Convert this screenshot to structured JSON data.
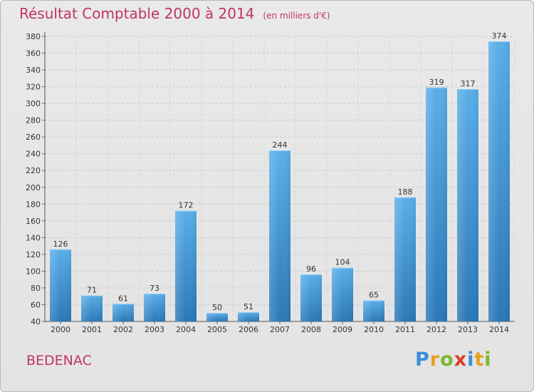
{
  "header": {
    "title": "Résultat Comptable 2000 à 2014",
    "subtitle": "(en milliers d'€)"
  },
  "commune": "BEDENAC",
  "brand": {
    "text": "Proxiti",
    "letters": [
      "P",
      "r",
      "o",
      "x",
      "i",
      "t",
      "i"
    ],
    "colors": [
      "#3a8ed8",
      "#e8a020",
      "#7ab830",
      "#d8402a",
      "#3a8ed8",
      "#e8a020",
      "#7ab830"
    ]
  },
  "colors": {
    "title": "#c0336a",
    "bar_light": "#5aaee8",
    "bar_dark": "#2a78b8"
  },
  "chart_data": {
    "type": "bar",
    "categories": [
      "2000",
      "2001",
      "2002",
      "2003",
      "2004",
      "2005",
      "2006",
      "2007",
      "2008",
      "2009",
      "2010",
      "2011",
      "2012",
      "2013",
      "2014"
    ],
    "values": [
      126,
      71,
      61,
      73,
      172,
      50,
      51,
      244,
      96,
      104,
      65,
      188,
      319,
      317,
      374
    ],
    "title": "Résultat Comptable 2000 à 2014",
    "ylim": [
      40,
      380
    ],
    "yticks": [
      40,
      60,
      80,
      100,
      120,
      140,
      160,
      180,
      200,
      220,
      240,
      260,
      280,
      300,
      320,
      340,
      360,
      380
    ],
    "grid": true,
    "legend": "none"
  }
}
